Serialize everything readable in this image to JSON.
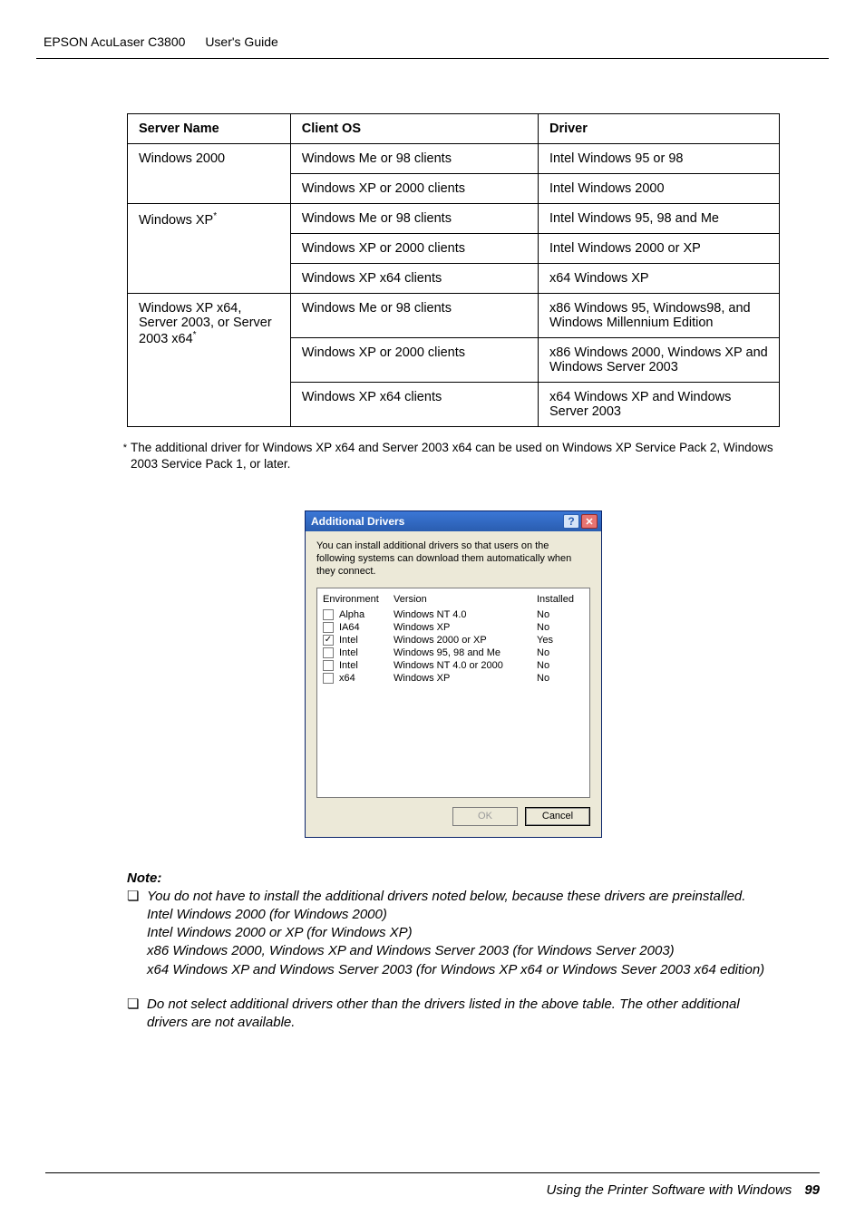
{
  "header": {
    "product": "EPSON AcuLaser C3800",
    "guide": "User's Guide"
  },
  "table": {
    "headers": {
      "c1": "Server Name",
      "c2": "Client OS",
      "c3": "Driver"
    },
    "rows": [
      {
        "server": "Windows 2000",
        "server_rowspan": 2,
        "client": "Windows Me or 98 clients",
        "driver": "Intel Windows 95 or 98"
      },
      {
        "client": "Windows XP or 2000 clients",
        "driver": "Intel Windows 2000"
      },
      {
        "server": "Windows XP",
        "server_sup": "*",
        "server_rowspan": 3,
        "client": "Windows Me or 98 clients",
        "driver": "Intel Windows 95, 98 and Me"
      },
      {
        "client": "Windows XP or 2000 clients",
        "driver": "Intel Windows 2000 or XP"
      },
      {
        "client": "Windows XP x64 clients",
        "driver": "x64 Windows XP"
      },
      {
        "server": "Windows XP x64, Server 2003, or Server 2003 x64",
        "server_sup": "*",
        "server_rowspan": 3,
        "client": "Windows Me or 98 clients",
        "driver": "x86 Windows 95, Windows98, and Windows Millennium Edition"
      },
      {
        "client": "Windows XP or 2000 clients",
        "driver": "x86 Windows 2000, Windows XP and Windows Server 2003"
      },
      {
        "client": "Windows XP x64 clients",
        "driver": "x64 Windows XP and Windows Server 2003"
      }
    ]
  },
  "footnote": {
    "star": "*",
    "text": "The additional driver for Windows XP x64 and Server 2003 x64 can be used on Windows XP Service Pack 2, Windows 2003 Service Pack 1, or later."
  },
  "dialog": {
    "title": "Additional Drivers",
    "help_glyph": "?",
    "close_glyph": "✕",
    "desc": "You can install additional drivers so that users on the following systems can download them automatically when they connect.",
    "columns": {
      "env": "Environment",
      "ver": "Version",
      "inst": "Installed"
    },
    "rows": [
      {
        "checked": false,
        "env": "Alpha",
        "ver": "Windows NT 4.0",
        "inst": "No"
      },
      {
        "checked": false,
        "env": "IA64",
        "ver": "Windows XP",
        "inst": "No"
      },
      {
        "checked": true,
        "env": "Intel",
        "ver": "Windows 2000 or XP",
        "inst": "Yes"
      },
      {
        "checked": false,
        "env": "Intel",
        "ver": "Windows 95, 98 and Me",
        "inst": "No"
      },
      {
        "checked": false,
        "env": "Intel",
        "ver": "Windows NT 4.0 or 2000",
        "inst": "No"
      },
      {
        "checked": false,
        "env": "x64",
        "ver": "Windows XP",
        "inst": "No"
      }
    ],
    "ok": "OK",
    "cancel": "Cancel"
  },
  "note": {
    "title": "Note:",
    "bullet": "❏",
    "items": [
      "You do not have to install the additional drivers noted below, because these drivers are preinstalled.\nIntel Windows 2000 (for Windows 2000)\nIntel Windows 2000 or XP (for Windows XP)\nx86 Windows 2000, Windows XP and Windows Server 2003 (for Windows Server 2003)\nx64 Windows XP and Windows Server 2003 (for Windows XP x64 or Windows Sever 2003 x64 edition)",
      "Do not select additional drivers other than the drivers listed in the above table. The other additional drivers are not available."
    ]
  },
  "footer": {
    "section": "Using the Printer Software with Windows",
    "page": "99"
  }
}
